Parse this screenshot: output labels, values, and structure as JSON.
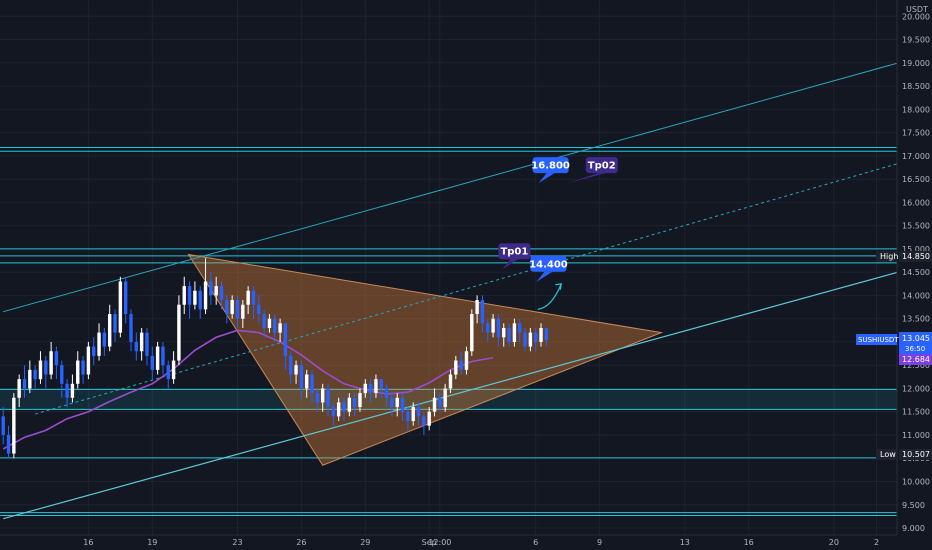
{
  "chart_data": {
    "type": "candlestick",
    "currency_label": "USDT",
    "symbol_label": "SUSHIUSDT",
    "last_price": "13.045",
    "countdown": "36:50",
    "ma_value": "12.684",
    "high_label": "High",
    "high_value": "14.850",
    "low_label": "Low",
    "low_value": "10.507",
    "y_range": [
      8.85,
      20.35
    ],
    "y_ticks": [
      "9.000",
      "9.500",
      "10.000",
      "10.500",
      "11.000",
      "11.500",
      "12.000",
      "12.500",
      "13.000",
      "13.500",
      "14.000",
      "14.500",
      "15.000",
      "15.500",
      "16.000",
      "16.500",
      "17.000",
      "17.500",
      "18.000",
      "18.500",
      "19.000",
      "19.500",
      "20.000"
    ],
    "x_ticks": [
      {
        "label": "16",
        "day": 16
      },
      {
        "label": "19",
        "day": 19
      },
      {
        "label": "23",
        "day": 23
      },
      {
        "label": "26",
        "day": 26
      },
      {
        "label": "29",
        "day": 29
      },
      {
        "label": "Sep",
        "day": 32
      },
      {
        "label": "12:00",
        "day": 32.5
      },
      {
        "label": "6",
        "day": 37
      },
      {
        "label": "9",
        "day": 40
      },
      {
        "label": "13",
        "day": 44
      },
      {
        "label": "16",
        "day": 47
      },
      {
        "label": "20",
        "day": 51
      },
      {
        "label": "2",
        "day": 53
      }
    ],
    "horizontal_levels": [
      17.18,
      17.1,
      15.0,
      14.85,
      14.7,
      11.98,
      11.55,
      10.507,
      9.33,
      9.27
    ],
    "zone": [
      11.55,
      11.98
    ],
    "triangle": [
      {
        "day": 20.7,
        "price": 14.88
      },
      {
        "day": 42.9,
        "price": 13.2
      },
      {
        "day": 27.0,
        "price": 10.35
      }
    ],
    "channel_upper": [
      {
        "day": 12.0,
        "price": 13.65
      },
      {
        "day": 56.0,
        "price": 19.25
      }
    ],
    "channel_lower": [
      {
        "day": 12.0,
        "price": 9.2
      },
      {
        "day": 56.0,
        "price": 14.75
      }
    ],
    "channel_mid": [
      {
        "day": 13.5,
        "price": 11.45
      },
      {
        "day": 56.0,
        "price": 17.1
      }
    ],
    "ma_points": [
      {
        "day": 12.0,
        "price": 10.7
      },
      {
        "day": 13.0,
        "price": 10.95
      },
      {
        "day": 14.0,
        "price": 11.1
      },
      {
        "day": 15.0,
        "price": 11.35
      },
      {
        "day": 16.0,
        "price": 11.5
      },
      {
        "day": 17.0,
        "price": 11.72
      },
      {
        "day": 18.0,
        "price": 11.92
      },
      {
        "day": 19.0,
        "price": 12.1
      },
      {
        "day": 20.0,
        "price": 12.42
      },
      {
        "day": 21.0,
        "price": 12.82
      },
      {
        "day": 22.0,
        "price": 13.1
      },
      {
        "day": 23.0,
        "price": 13.25
      },
      {
        "day": 24.0,
        "price": 13.2
      },
      {
        "day": 25.0,
        "price": 13.0
      },
      {
        "day": 26.0,
        "price": 12.72
      },
      {
        "day": 27.0,
        "price": 12.38
      },
      {
        "day": 28.0,
        "price": 12.1
      },
      {
        "day": 29.0,
        "price": 11.97
      },
      {
        "day": 30.0,
        "price": 11.88
      },
      {
        "day": 31.0,
        "price": 11.92
      },
      {
        "day": 32.0,
        "price": 12.12
      },
      {
        "day": 33.0,
        "price": 12.4
      },
      {
        "day": 34.0,
        "price": 12.58
      },
      {
        "day": 35.0,
        "price": 12.66
      }
    ],
    "candles_day_start": 12.0,
    "candles_day_step": 0.25,
    "candles": [
      [
        11.4,
        11.0,
        11.6,
        10.8
      ],
      [
        11.0,
        10.6,
        11.2,
        10.5
      ],
      [
        10.6,
        11.8,
        11.9,
        10.5
      ],
      [
        11.8,
        12.2,
        12.3,
        11.6
      ],
      [
        12.2,
        12.0,
        12.5,
        11.8
      ],
      [
        12.0,
        12.4,
        12.6,
        11.9
      ],
      [
        12.4,
        12.2,
        12.5,
        12.0
      ],
      [
        12.2,
        12.6,
        12.8,
        12.1
      ],
      [
        12.6,
        12.3,
        12.7,
        12.0
      ],
      [
        12.3,
        12.8,
        13.0,
        12.2
      ],
      [
        12.8,
        12.5,
        12.9,
        12.2
      ],
      [
        12.5,
        12.1,
        12.6,
        11.8
      ],
      [
        12.1,
        11.8,
        12.2,
        11.6
      ],
      [
        11.8,
        12.1,
        12.3,
        11.7
      ],
      [
        12.1,
        12.6,
        12.8,
        12.0
      ],
      [
        12.6,
        12.3,
        12.7,
        12.1
      ],
      [
        12.3,
        12.9,
        13.0,
        12.2
      ],
      [
        12.9,
        12.7,
        13.1,
        12.5
      ],
      [
        12.7,
        13.2,
        13.4,
        12.6
      ],
      [
        13.2,
        12.9,
        13.3,
        12.7
      ],
      [
        12.9,
        13.6,
        13.8,
        12.8
      ],
      [
        13.6,
        13.2,
        13.7,
        13.0
      ],
      [
        13.2,
        14.3,
        14.4,
        13.1
      ],
      [
        14.3,
        13.6,
        14.4,
        13.4
      ],
      [
        13.6,
        13.0,
        13.7,
        12.8
      ],
      [
        13.0,
        12.8,
        13.2,
        12.6
      ],
      [
        12.8,
        13.2,
        13.3,
        12.6
      ],
      [
        13.2,
        12.7,
        13.3,
        12.5
      ],
      [
        12.7,
        12.4,
        12.9,
        12.2
      ],
      [
        12.4,
        12.9,
        13.0,
        12.3
      ],
      [
        12.9,
        12.5,
        13.0,
        12.3
      ],
      [
        12.5,
        12.2,
        12.6,
        12.0
      ],
      [
        12.2,
        12.6,
        12.8,
        12.1
      ],
      [
        12.6,
        13.8,
        14.0,
        12.5
      ],
      [
        13.8,
        14.2,
        14.4,
        13.6
      ],
      [
        14.2,
        13.8,
        14.3,
        13.5
      ],
      [
        13.8,
        14.1,
        14.3,
        13.7
      ],
      [
        14.1,
        13.7,
        14.2,
        13.5
      ],
      [
        13.7,
        14.3,
        14.8,
        13.6
      ],
      [
        14.3,
        14.0,
        14.5,
        13.8
      ],
      [
        14.0,
        14.2,
        14.4,
        13.8
      ],
      [
        14.2,
        13.9,
        14.3,
        13.7
      ],
      [
        13.9,
        13.6,
        14.0,
        13.4
      ],
      [
        13.6,
        13.9,
        14.0,
        13.5
      ],
      [
        13.9,
        13.5,
        14.0,
        13.3
      ],
      [
        13.5,
        13.8,
        13.9,
        13.3
      ],
      [
        13.8,
        14.1,
        14.2,
        13.6
      ],
      [
        14.1,
        13.8,
        14.2,
        13.5
      ],
      [
        13.8,
        13.6,
        14.0,
        13.4
      ],
      [
        13.6,
        13.3,
        13.7,
        13.1
      ],
      [
        13.3,
        13.5,
        13.6,
        13.2
      ],
      [
        13.5,
        13.2,
        13.6,
        13.0
      ],
      [
        13.2,
        13.4,
        13.5,
        13.0
      ],
      [
        13.4,
        12.7,
        13.4,
        12.4
      ],
      [
        12.7,
        12.3,
        12.8,
        12.1
      ],
      [
        12.3,
        12.5,
        12.6,
        12.1
      ],
      [
        12.5,
        12.0,
        12.6,
        11.8
      ],
      [
        12.0,
        12.3,
        12.4,
        11.8
      ],
      [
        12.3,
        11.9,
        12.4,
        11.7
      ],
      [
        11.9,
        11.7,
        12.0,
        11.5
      ],
      [
        11.7,
        12.0,
        12.1,
        11.5
      ],
      [
        12.0,
        11.6,
        12.1,
        11.4
      ],
      [
        11.6,
        11.4,
        11.7,
        11.2
      ],
      [
        11.4,
        11.7,
        11.8,
        11.3
      ],
      [
        11.7,
        11.5,
        11.8,
        11.3
      ],
      [
        11.5,
        11.8,
        11.9,
        11.4
      ],
      [
        11.8,
        11.6,
        11.9,
        11.4
      ],
      [
        11.6,
        11.9,
        12.0,
        11.5
      ],
      [
        11.9,
        12.1,
        12.2,
        11.8
      ],
      [
        12.1,
        11.9,
        12.2,
        11.7
      ],
      [
        11.9,
        12.2,
        12.3,
        11.8
      ],
      [
        12.2,
        12.0,
        12.2,
        11.8
      ],
      [
        12.0,
        11.8,
        12.1,
        11.6
      ],
      [
        11.8,
        11.6,
        11.9,
        11.4
      ],
      [
        11.6,
        11.8,
        11.9,
        11.4
      ],
      [
        11.8,
        11.5,
        11.9,
        11.3
      ],
      [
        11.5,
        11.3,
        11.6,
        11.1
      ],
      [
        11.3,
        11.6,
        11.7,
        11.2
      ],
      [
        11.6,
        11.4,
        11.7,
        11.2
      ],
      [
        11.4,
        11.2,
        11.5,
        11.0
      ],
      [
        11.2,
        11.5,
        11.6,
        11.1
      ],
      [
        11.5,
        11.8,
        12.0,
        11.4
      ],
      [
        11.8,
        11.6,
        11.9,
        11.5
      ],
      [
        11.6,
        12.0,
        12.1,
        11.5
      ],
      [
        12.0,
        12.3,
        12.4,
        11.9
      ],
      [
        12.3,
        12.6,
        12.7,
        12.2
      ],
      [
        12.6,
        12.4,
        12.8,
        12.3
      ],
      [
        12.4,
        12.8,
        12.9,
        12.3
      ],
      [
        12.8,
        13.6,
        13.7,
        12.7
      ],
      [
        13.6,
        13.9,
        14.0,
        13.4
      ],
      [
        13.9,
        13.4,
        14.0,
        13.2
      ],
      [
        13.4,
        13.2,
        13.5,
        13.0
      ],
      [
        13.2,
        13.5,
        13.6,
        13.1
      ],
      [
        13.5,
        13.1,
        13.6,
        12.9
      ],
      [
        13.1,
        13.3,
        13.4,
        12.9
      ],
      [
        13.3,
        13.0,
        13.4,
        12.9
      ],
      [
        13.0,
        13.4,
        13.5,
        12.9
      ],
      [
        13.4,
        13.2,
        13.5,
        13.0
      ],
      [
        13.2,
        12.9,
        13.3,
        12.8
      ],
      [
        12.9,
        13.2,
        13.3,
        12.8
      ],
      [
        13.2,
        13.0,
        13.3,
        12.8
      ],
      [
        13.0,
        13.3,
        13.4,
        12.9
      ],
      [
        13.3,
        13.045,
        13.3,
        12.9
      ]
    ],
    "callouts": [
      {
        "label": "16.800",
        "day": 37.7,
        "price": 16.8,
        "kind": "price"
      },
      {
        "label": "Tp02",
        "day": 40.1,
        "price": 16.8,
        "kind": "target"
      },
      {
        "label": "Tp01",
        "day": 36.0,
        "price": 14.95,
        "kind": "target"
      },
      {
        "label": "14.400",
        "day": 37.6,
        "price": 14.68,
        "kind": "price"
      }
    ],
    "arrow": [
      {
        "day": 37.1,
        "price": 13.7
      },
      {
        "day": 38.2,
        "price": 14.25
      }
    ]
  }
}
